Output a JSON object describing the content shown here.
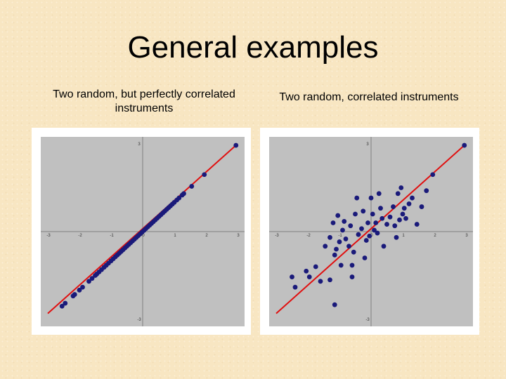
{
  "slide": {
    "title": "General examples"
  },
  "captions": {
    "left": "Two random, but perfectly correlated instruments",
    "right": "Two random, correlated instruments"
  },
  "colors": {
    "background": "#f8e6c2",
    "plot_area": "#c0c0c0",
    "points": "#1a1a7a",
    "fit_line": "#e01010",
    "axis": "#808080"
  },
  "chart_data": [
    {
      "type": "scatter",
      "title": "",
      "xlabel": "",
      "ylabel": "",
      "xlim": [
        -3,
        3
      ],
      "ylim": [
        -3,
        3
      ],
      "xticks": [
        "-3",
        "-2",
        "-1",
        "0",
        "1",
        "2",
        "3"
      ],
      "yticks": [
        "3",
        "-3"
      ],
      "grid": false,
      "fit_line": {
        "x": [
          -3,
          3
        ],
        "y": [
          -2.8,
          3
        ]
      },
      "points": [
        [
          -2.55,
          -2.55
        ],
        [
          -2.45,
          -2.45
        ],
        [
          -2.2,
          -2.2
        ],
        [
          -2.15,
          -2.15
        ],
        [
          -2.0,
          -2.0
        ],
        [
          -1.9,
          -1.9
        ],
        [
          -1.7,
          -1.7
        ],
        [
          -1.6,
          -1.6
        ],
        [
          -1.5,
          -1.5
        ],
        [
          -1.45,
          -1.45
        ],
        [
          -1.38,
          -1.38
        ],
        [
          -1.3,
          -1.3
        ],
        [
          -1.22,
          -1.22
        ],
        [
          -1.15,
          -1.15
        ],
        [
          -1.08,
          -1.08
        ],
        [
          -1.0,
          -1.0
        ],
        [
          -0.93,
          -0.93
        ],
        [
          -0.86,
          -0.86
        ],
        [
          -0.8,
          -0.8
        ],
        [
          -0.74,
          -0.74
        ],
        [
          -0.68,
          -0.68
        ],
        [
          -0.62,
          -0.62
        ],
        [
          -0.56,
          -0.56
        ],
        [
          -0.5,
          -0.5
        ],
        [
          -0.44,
          -0.44
        ],
        [
          -0.38,
          -0.38
        ],
        [
          -0.32,
          -0.32
        ],
        [
          -0.26,
          -0.26
        ],
        [
          -0.2,
          -0.2
        ],
        [
          -0.14,
          -0.14
        ],
        [
          -0.08,
          -0.08
        ],
        [
          -0.02,
          -0.02
        ],
        [
          0.04,
          0.04
        ],
        [
          0.1,
          0.1
        ],
        [
          0.16,
          0.16
        ],
        [
          0.22,
          0.22
        ],
        [
          0.28,
          0.28
        ],
        [
          0.34,
          0.34
        ],
        [
          0.4,
          0.4
        ],
        [
          0.46,
          0.46
        ],
        [
          0.52,
          0.52
        ],
        [
          0.58,
          0.58
        ],
        [
          0.64,
          0.64
        ],
        [
          0.7,
          0.7
        ],
        [
          0.76,
          0.76
        ],
        [
          0.82,
          0.82
        ],
        [
          0.88,
          0.88
        ],
        [
          0.94,
          0.94
        ],
        [
          1.0,
          1.0
        ],
        [
          1.08,
          1.08
        ],
        [
          1.15,
          1.15
        ],
        [
          1.25,
          1.25
        ],
        [
          1.3,
          1.3
        ],
        [
          1.55,
          1.55
        ],
        [
          1.95,
          1.95
        ],
        [
          2.95,
          2.95
        ]
      ]
    },
    {
      "type": "scatter",
      "title": "",
      "xlabel": "",
      "ylabel": "",
      "xlim": [
        -3,
        3
      ],
      "ylim": [
        -3,
        3
      ],
      "xticks": [
        "-3",
        "-2",
        "-1",
        "0",
        "1",
        "2",
        "3"
      ],
      "yticks": [
        "3",
        "-3"
      ],
      "grid": false,
      "fit_line": {
        "x": [
          -3,
          3
        ],
        "y": [
          -2.8,
          3
        ]
      },
      "points": [
        [
          -2.5,
          -1.55
        ],
        [
          -2.4,
          -1.9
        ],
        [
          -2.05,
          -1.35
        ],
        [
          -1.95,
          -1.55
        ],
        [
          -1.75,
          -1.2
        ],
        [
          -1.6,
          -1.7
        ],
        [
          -1.45,
          -0.5
        ],
        [
          -1.3,
          -1.65
        ],
        [
          -1.3,
          -0.2
        ],
        [
          -1.2,
          0.3
        ],
        [
          -1.15,
          -0.8
        ],
        [
          -1.1,
          -0.6
        ],
        [
          -1.05,
          0.55
        ],
        [
          -1.0,
          -0.35
        ],
        [
          -0.95,
          -1.15
        ],
        [
          -0.9,
          0.05
        ],
        [
          -0.85,
          0.35
        ],
        [
          -0.8,
          -0.25
        ],
        [
          -0.7,
          -0.5
        ],
        [
          -0.65,
          0.2
        ],
        [
          -0.6,
          -1.55
        ],
        [
          -0.55,
          -0.7
        ],
        [
          -0.5,
          0.6
        ],
        [
          -0.45,
          1.15
        ],
        [
          -0.4,
          -0.1
        ],
        [
          -0.3,
          0.1
        ],
        [
          -0.25,
          0.7
        ],
        [
          -0.2,
          -0.9
        ],
        [
          -0.15,
          -0.3
        ],
        [
          -0.1,
          0.3
        ],
        [
          -0.05,
          -0.15
        ],
        [
          0.0,
          1.15
        ],
        [
          0.05,
          0.6
        ],
        [
          0.1,
          0.05
        ],
        [
          0.15,
          0.3
        ],
        [
          0.2,
          -0.05
        ],
        [
          0.25,
          1.3
        ],
        [
          0.3,
          0.8
        ],
        [
          0.35,
          0.45
        ],
        [
          0.4,
          -0.5
        ],
        [
          0.5,
          0.25
        ],
        [
          0.6,
          0.5
        ],
        [
          0.7,
          0.85
        ],
        [
          0.75,
          0.2
        ],
        [
          0.8,
          -0.2
        ],
        [
          0.85,
          1.3
        ],
        [
          0.9,
          0.4
        ],
        [
          0.95,
          1.5
        ],
        [
          1.0,
          0.6
        ],
        [
          1.05,
          0.8
        ],
        [
          1.1,
          0.45
        ],
        [
          1.2,
          0.95
        ],
        [
          1.3,
          1.15
        ],
        [
          1.45,
          0.25
        ],
        [
          1.6,
          0.85
        ],
        [
          1.75,
          1.4
        ],
        [
          1.95,
          1.95
        ],
        [
          2.95,
          2.95
        ],
        [
          -1.15,
          -2.5
        ],
        [
          -0.6,
          -1.15
        ]
      ]
    }
  ]
}
